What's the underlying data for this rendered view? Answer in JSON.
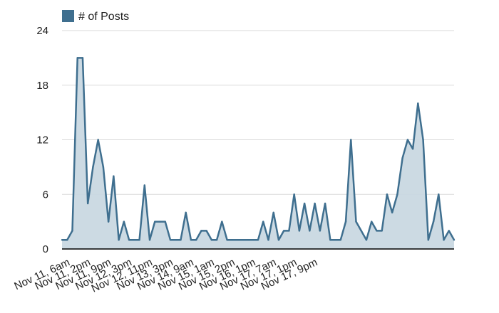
{
  "chart_data": {
    "type": "area",
    "title": "",
    "xlabel": "",
    "ylabel": "",
    "ylim": [
      0,
      24
    ],
    "yticks": [
      0,
      6,
      12,
      18,
      24
    ],
    "grid": true,
    "legend_position": "top-left",
    "colors": {
      "line": "#3f6f8f",
      "fill": "#c9d8e2",
      "swatch": "#3f6f8f",
      "grid": "#d9d9d9",
      "axis": "#000000"
    },
    "x_tick_labels": [
      {
        "index": 0,
        "label": "Nov 11, 6am"
      },
      {
        "index": 4,
        "label": "Nov 11, 2pm"
      },
      {
        "index": 8,
        "label": "Nov 11, 9pm"
      },
      {
        "index": 12,
        "label": "Nov 12, 3pm"
      },
      {
        "index": 16,
        "label": "Nov 12, 11pm"
      },
      {
        "index": 20,
        "label": "Nov 13, 3pm"
      },
      {
        "index": 24,
        "label": "Nov 14, 9am"
      },
      {
        "index": 28,
        "label": "Nov 15, 1am"
      },
      {
        "index": 32,
        "label": "Nov 15, 2pm"
      },
      {
        "index": 36,
        "label": "Nov 16, 1pm"
      },
      {
        "index": 40,
        "label": "Nov 17, 7am"
      },
      {
        "index": 44,
        "label": "Nov 17, 1pm"
      },
      {
        "index": 48,
        "label": "Nov 17, 9pm"
      }
    ],
    "series": [
      {
        "name": "# of Posts",
        "values": [
          1,
          1,
          2,
          21,
          21,
          5,
          9,
          12,
          9,
          3,
          8,
          1,
          3,
          1,
          1,
          1,
          7,
          1,
          3,
          3,
          3,
          1,
          1,
          1,
          4,
          1,
          1,
          2,
          2,
          1,
          1,
          3,
          1,
          1,
          1,
          1,
          1,
          1,
          1,
          3,
          1,
          4,
          1,
          2,
          2,
          6,
          2,
          5,
          2,
          5,
          2,
          5,
          1,
          1,
          1,
          3,
          12,
          3,
          2,
          1,
          3,
          2,
          2,
          6,
          4,
          6,
          10,
          12,
          11,
          16,
          12,
          1,
          3,
          6,
          1,
          2,
          1
        ]
      }
    ]
  }
}
